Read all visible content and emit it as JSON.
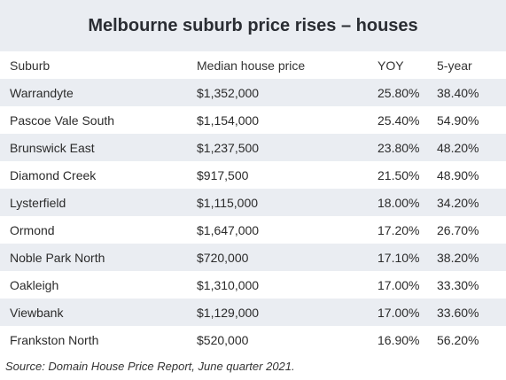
{
  "title": "Melbourne suburb price rises – houses",
  "headers": [
    "Suburb",
    "Median house price",
    "YOY",
    "5-year"
  ],
  "rows": [
    [
      "Warrandyte",
      "$1,352,000",
      "25.80%",
      "38.40%"
    ],
    [
      "Pascoe Vale South",
      "$1,154,000",
      "25.40%",
      "54.90%"
    ],
    [
      "Brunswick East",
      "$1,237,500",
      "23.80%",
      "48.20%"
    ],
    [
      "Diamond Creek",
      "$917,500",
      "21.50%",
      "48.90%"
    ],
    [
      "Lysterfield",
      "$1,115,000",
      "18.00%",
      "34.20%"
    ],
    [
      "Ormond",
      "$1,647,000",
      "17.20%",
      "26.70%"
    ],
    [
      "Noble Park North",
      "$720,000",
      "17.10%",
      "38.20%"
    ],
    [
      "Oakleigh",
      "$1,310,000",
      "17.00%",
      "33.30%"
    ],
    [
      "Viewbank",
      "$1,129,000",
      "17.00%",
      "33.60%"
    ],
    [
      "Frankston North",
      "$520,000",
      "16.90%",
      "56.20%"
    ]
  ],
  "source": "Source: Domain House Price Report, June quarter 2021."
}
